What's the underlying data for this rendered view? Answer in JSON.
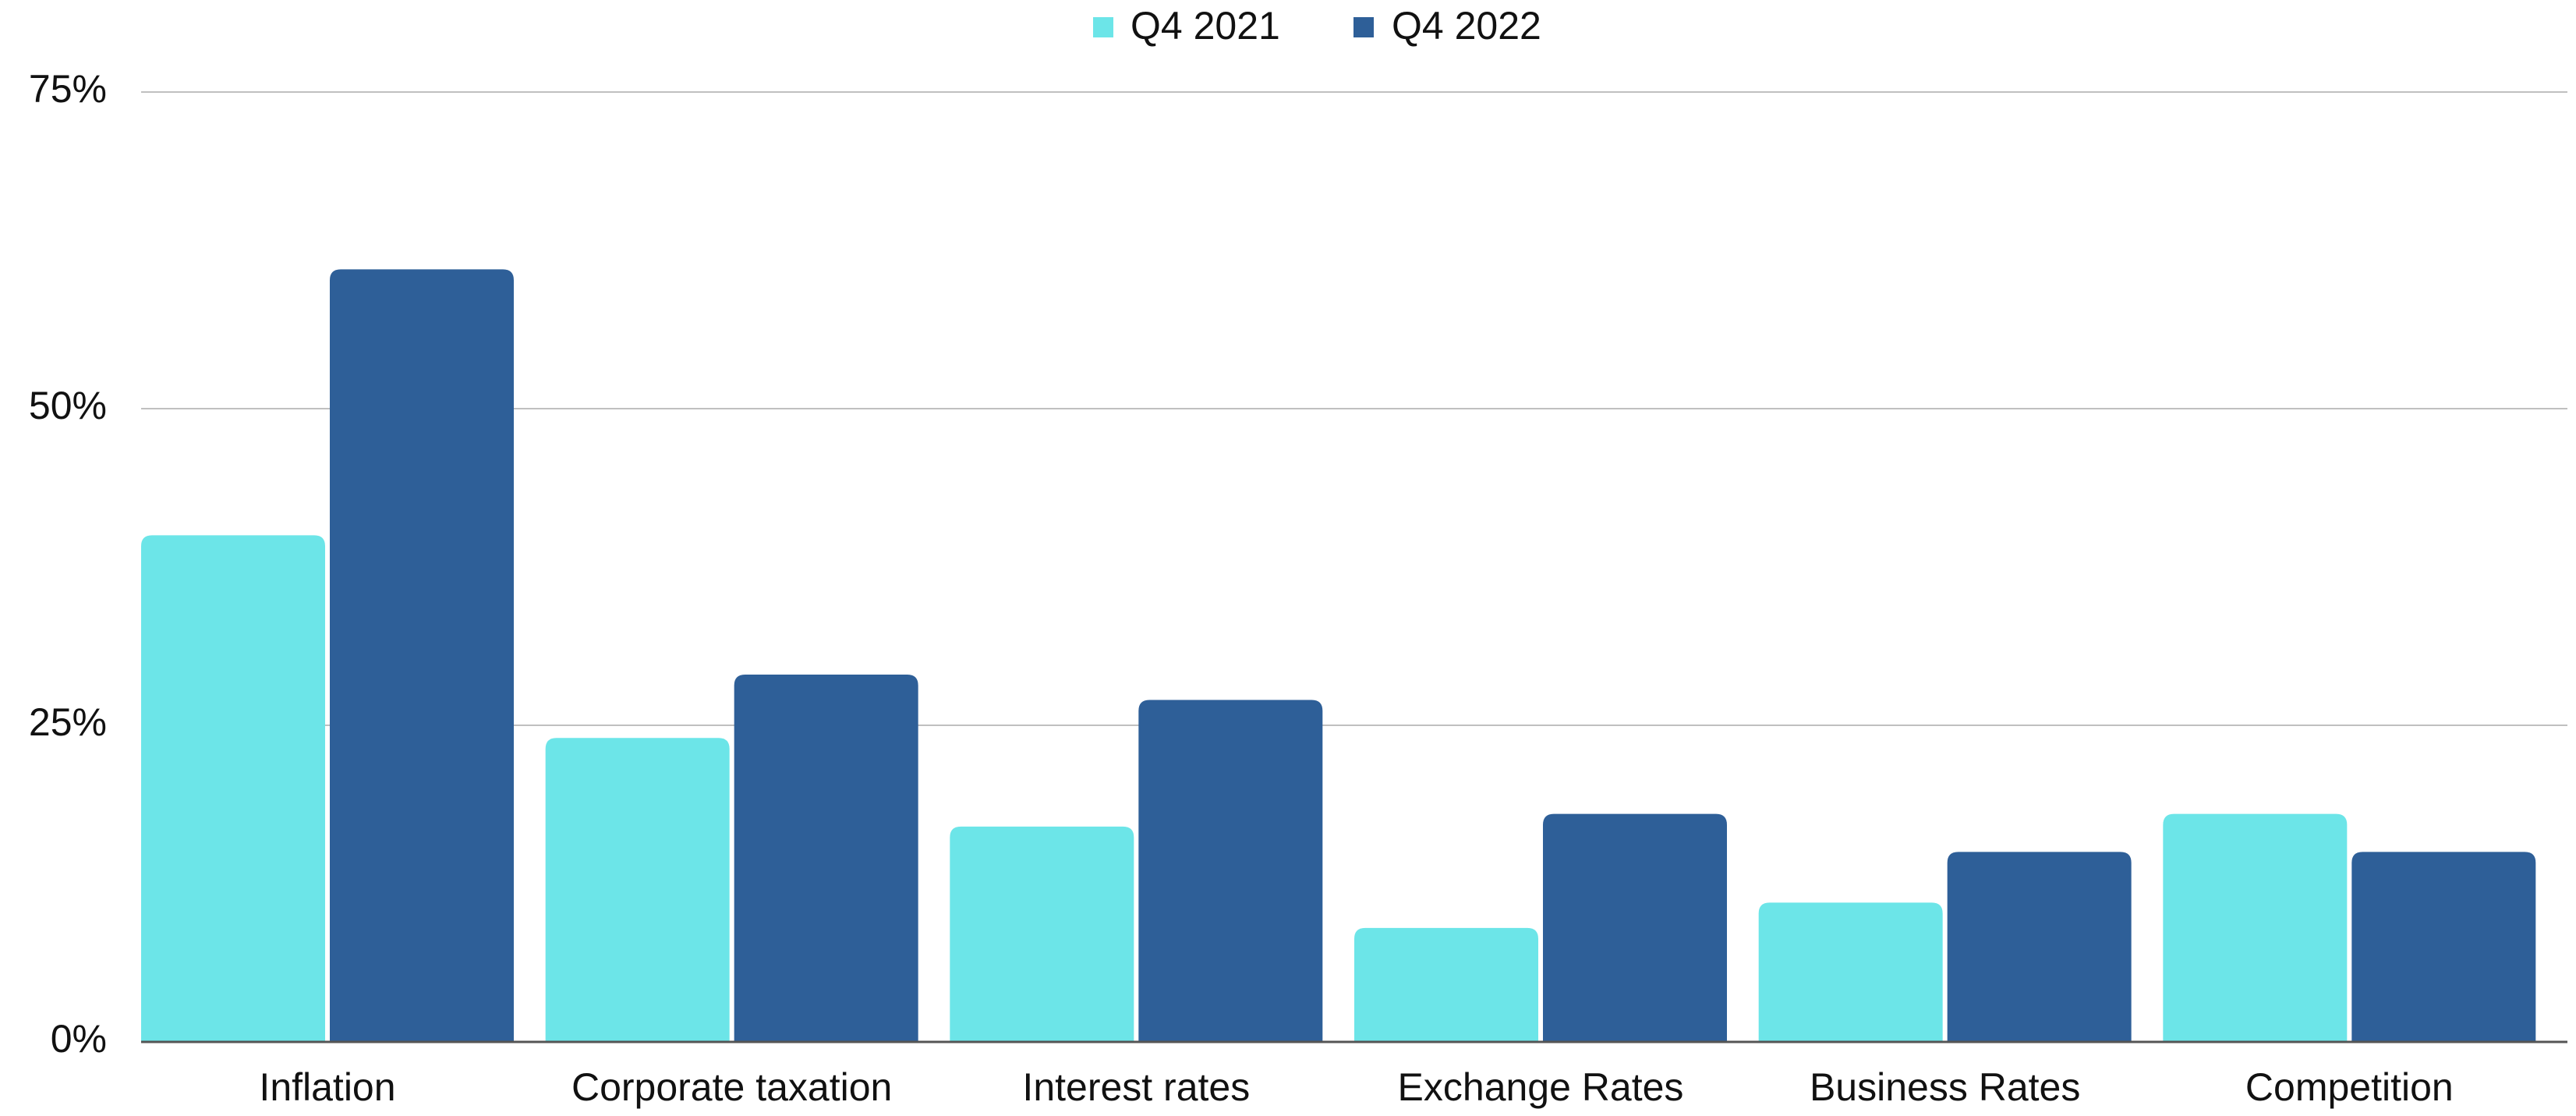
{
  "chart_data": {
    "type": "bar",
    "categories": [
      "Inflation",
      "Corporate taxation",
      "Interest rates",
      "Exchange Rates",
      "Business Rates",
      "Competition"
    ],
    "series": [
      {
        "name": "Q4 2021",
        "color": "#6ce5e8",
        "values": [
          40,
          24,
          17,
          9,
          11,
          18
        ]
      },
      {
        "name": "Q4 2022",
        "color": "#2e5f98",
        "values": [
          61,
          29,
          27,
          18,
          15,
          15
        ]
      }
    ],
    "ylim": [
      0,
      75
    ],
    "yticks": [
      {
        "value": 0,
        "label": "0%"
      },
      {
        "value": 25,
        "label": "25%"
      },
      {
        "value": 50,
        "label": "50%"
      },
      {
        "value": 75,
        "label": "75%"
      }
    ],
    "grid": true,
    "legend": "top"
  }
}
